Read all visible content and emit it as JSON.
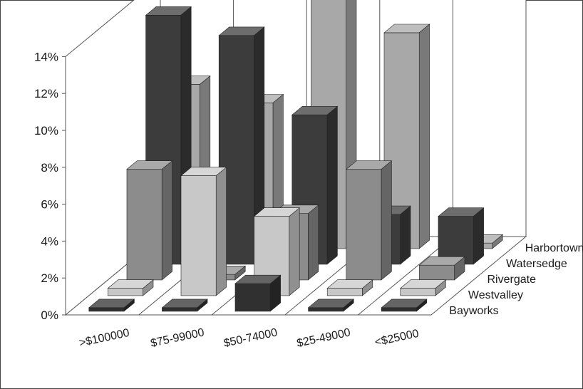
{
  "chart_data": {
    "type": "bar",
    "subtype": "3d-column",
    "title": "",
    "xlabel": "",
    "ylabel": "",
    "categories": [
      ">$100000",
      "$75-99000",
      "$50-74000",
      "$25-49000",
      "<$25000"
    ],
    "y_ticks": [
      "0%",
      "2%",
      "4%",
      "6%",
      "8%",
      "10%",
      "12%",
      "14%"
    ],
    "ylim": [
      0,
      14
    ],
    "grid": false,
    "series": [
      {
        "name": "Bayworks",
        "values": [
          0.2,
          0.2,
          1.5,
          0.2,
          0.2
        ],
        "color": "#303030"
      },
      {
        "name": "Westvalley",
        "values": [
          0.4,
          6.5,
          4.3,
          0.4,
          0.4
        ],
        "color": "#c8c8c8"
      },
      {
        "name": "Rivergate",
        "values": [
          6.0,
          0.3,
          3.6,
          6.0,
          0.8
        ],
        "color": "#8c8c8c"
      },
      {
        "name": "Watersedge",
        "values": [
          13.5,
          12.4,
          8.1,
          2.7,
          2.6
        ],
        "color": "#3c3c3c"
      },
      {
        "name": "Harbortown",
        "values": [
          8.9,
          7.9,
          14.2,
          11.7,
          0.3
        ],
        "color": "#a8a8a8"
      }
    ]
  }
}
